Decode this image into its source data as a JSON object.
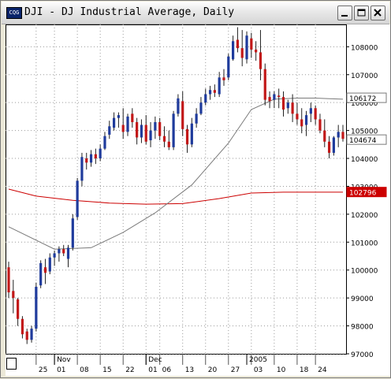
{
  "window": {
    "title": "DJI - DJ Industrial Average, Daily",
    "icon_label": "CQG",
    "buttons": {
      "minimize": "minimize-icon",
      "maximize": "maximize-icon",
      "close": "close-icon"
    }
  },
  "chart_data": {
    "type": "candlestick",
    "title": "DJI - DJ Industrial Average, Daily",
    "ylim": [
      9700,
      10880
    ],
    "yticks": [
      9700,
      9800,
      9900,
      10000,
      10100,
      10200,
      10300,
      10400,
      10500,
      10600,
      10700,
      10800
    ],
    "ytick_labels": [
      "97000",
      "98000",
      "99000",
      "100000",
      "101000",
      "102000",
      "103000",
      "104000",
      "105000",
      "106000",
      "107000",
      "108000"
    ],
    "x_day_labels": [
      "25",
      "01",
      "08",
      "15",
      "22",
      "01",
      "06",
      "13",
      "20",
      "27",
      "03",
      "10",
      "18",
      "24"
    ],
    "x_day_label_index": [
      6,
      10,
      15,
      20,
      25,
      30,
      33,
      38,
      43,
      48,
      53,
      58,
      63,
      67
    ],
    "x_month_labels": [
      "Nov",
      "Dec",
      "2005"
    ],
    "x_month_label_index": [
      10,
      30,
      52
    ],
    "grid": true,
    "colors": {
      "up": "#1f3b9c",
      "down": "#c21818",
      "ma_short": "#7a7a7a",
      "ma_long": "#cc0000",
      "background": "#ffffff",
      "grid": "#9a9a9a"
    },
    "series": [
      {
        "name": "DJI",
        "type": "candlestick",
        "ohlc": [
          [
            10010,
            10030,
            9900,
            9920
          ],
          [
            9925,
            9965,
            9845,
            9900
          ],
          [
            9895,
            9900,
            9800,
            9825
          ],
          [
            9825,
            9835,
            9755,
            9770
          ],
          [
            9780,
            9790,
            9735,
            9750
          ],
          [
            9750,
            9800,
            9740,
            9790
          ],
          [
            9790,
            9955,
            9780,
            9940
          ],
          [
            9945,
            10035,
            9935,
            10025
          ],
          [
            10010,
            10040,
            9950,
            9990
          ],
          [
            9995,
            10060,
            9985,
            10045
          ],
          [
            10045,
            10070,
            10015,
            10060
          ],
          [
            10060,
            10085,
            10030,
            10075
          ],
          [
            10075,
            10090,
            10050,
            10060
          ],
          [
            10040,
            10090,
            10010,
            10080
          ],
          [
            10080,
            10200,
            10070,
            10185
          ],
          [
            10190,
            10330,
            10180,
            10320
          ],
          [
            10320,
            10420,
            10300,
            10405
          ],
          [
            10400,
            10420,
            10360,
            10385
          ],
          [
            10385,
            10430,
            10370,
            10415
          ],
          [
            10415,
            10435,
            10380,
            10400
          ],
          [
            10400,
            10450,
            10390,
            10435
          ],
          [
            10435,
            10495,
            10430,
            10480
          ],
          [
            10485,
            10535,
            10470,
            10515
          ],
          [
            10510,
            10565,
            10500,
            10545
          ],
          [
            10545,
            10565,
            10510,
            10555
          ],
          [
            10520,
            10580,
            10470,
            10495
          ],
          [
            10495,
            10560,
            10480,
            10550
          ],
          [
            10560,
            10580,
            10510,
            10530
          ],
          [
            10530,
            10545,
            10450,
            10475
          ],
          [
            10475,
            10540,
            10455,
            10520
          ],
          [
            10520,
            10555,
            10450,
            10460
          ],
          [
            10465,
            10530,
            10440,
            10500
          ],
          [
            10500,
            10550,
            10470,
            10530
          ],
          [
            10530,
            10545,
            10465,
            10480
          ],
          [
            10480,
            10515,
            10440,
            10460
          ],
          [
            10460,
            10500,
            10430,
            10440
          ],
          [
            10440,
            10570,
            10430,
            10560
          ],
          [
            10560,
            10630,
            10550,
            10615
          ],
          [
            10605,
            10640,
            10480,
            10505
          ],
          [
            10505,
            10520,
            10420,
            10450
          ],
          [
            10450,
            10545,
            10440,
            10525
          ],
          [
            10525,
            10580,
            10510,
            10560
          ],
          [
            10560,
            10620,
            10555,
            10600
          ],
          [
            10600,
            10650,
            10590,
            10630
          ],
          [
            10630,
            10660,
            10610,
            10645
          ],
          [
            10645,
            10665,
            10620,
            10635
          ],
          [
            10630,
            10710,
            10620,
            10690
          ],
          [
            10690,
            10720,
            10660,
            10680
          ],
          [
            10690,
            10775,
            10680,
            10765
          ],
          [
            10755,
            10840,
            10750,
            10820
          ],
          [
            10825,
            10870,
            10780,
            10795
          ],
          [
            10795,
            10860,
            10730,
            10760
          ],
          [
            10755,
            10855,
            10740,
            10840
          ],
          [
            10830,
            10850,
            10760,
            10790
          ],
          [
            10790,
            10820,
            10750,
            10780
          ],
          [
            10780,
            10860,
            10680,
            10720
          ],
          [
            10720,
            10740,
            10590,
            10610
          ],
          [
            10620,
            10640,
            10580,
            10605
          ],
          [
            10610,
            10640,
            10580,
            10630
          ],
          [
            10625,
            10650,
            10580,
            10620
          ],
          [
            10620,
            10640,
            10550,
            10575
          ],
          [
            10580,
            10610,
            10560,
            10600
          ],
          [
            10600,
            10630,
            10530,
            10560
          ],
          [
            10560,
            10600,
            10520,
            10540
          ],
          [
            10540,
            10580,
            10490,
            10515
          ],
          [
            10520,
            10570,
            10480,
            10555
          ],
          [
            10560,
            10600,
            10530,
            10580
          ],
          [
            10580,
            10590,
            10520,
            10540
          ],
          [
            10540,
            10560,
            10490,
            10500
          ],
          [
            10500,
            10540,
            10440,
            10460
          ],
          [
            10460,
            10480,
            10400,
            10420
          ],
          [
            10420,
            10480,
            10410,
            10475
          ],
          [
            10475,
            10520,
            10440,
            10495
          ],
          [
            10495,
            10520,
            10460,
            10470
          ]
        ]
      },
      {
        "name": "MA short",
        "type": "line",
        "color": "#7a7a7a",
        "x": [
          0,
          10,
          18,
          25,
          32,
          40,
          48,
          53,
          58,
          63,
          67,
          70,
          73
        ],
        "y": [
          10155,
          10075,
          10080,
          10135,
          10205,
          10305,
          10455,
          10575,
          10612,
          10616,
          10616,
          10614,
          10612
        ]
      },
      {
        "name": "MA long",
        "type": "line",
        "color": "#cc0000",
        "x": [
          0,
          6,
          14,
          22,
          30,
          38,
          46,
          53,
          60,
          66,
          70,
          73
        ],
        "y": [
          10290,
          10265,
          10250,
          10240,
          10236,
          10238,
          10256,
          10276,
          10279,
          10279,
          10279,
          10279
        ]
      }
    ],
    "price_tags": [
      {
        "label": "106172",
        "value": 10617.2,
        "background": "#ffffff",
        "color": "#000000",
        "border": "#7a7a7a"
      },
      {
        "label": "104674",
        "value": 10467.4,
        "background": "#ffffff",
        "color": "#000000",
        "border": "#7a7a7a"
      },
      {
        "label": "102796",
        "value": 10279.6,
        "background": "#cc0000",
        "color": "#ffffff",
        "border": "#cc0000"
      }
    ]
  }
}
